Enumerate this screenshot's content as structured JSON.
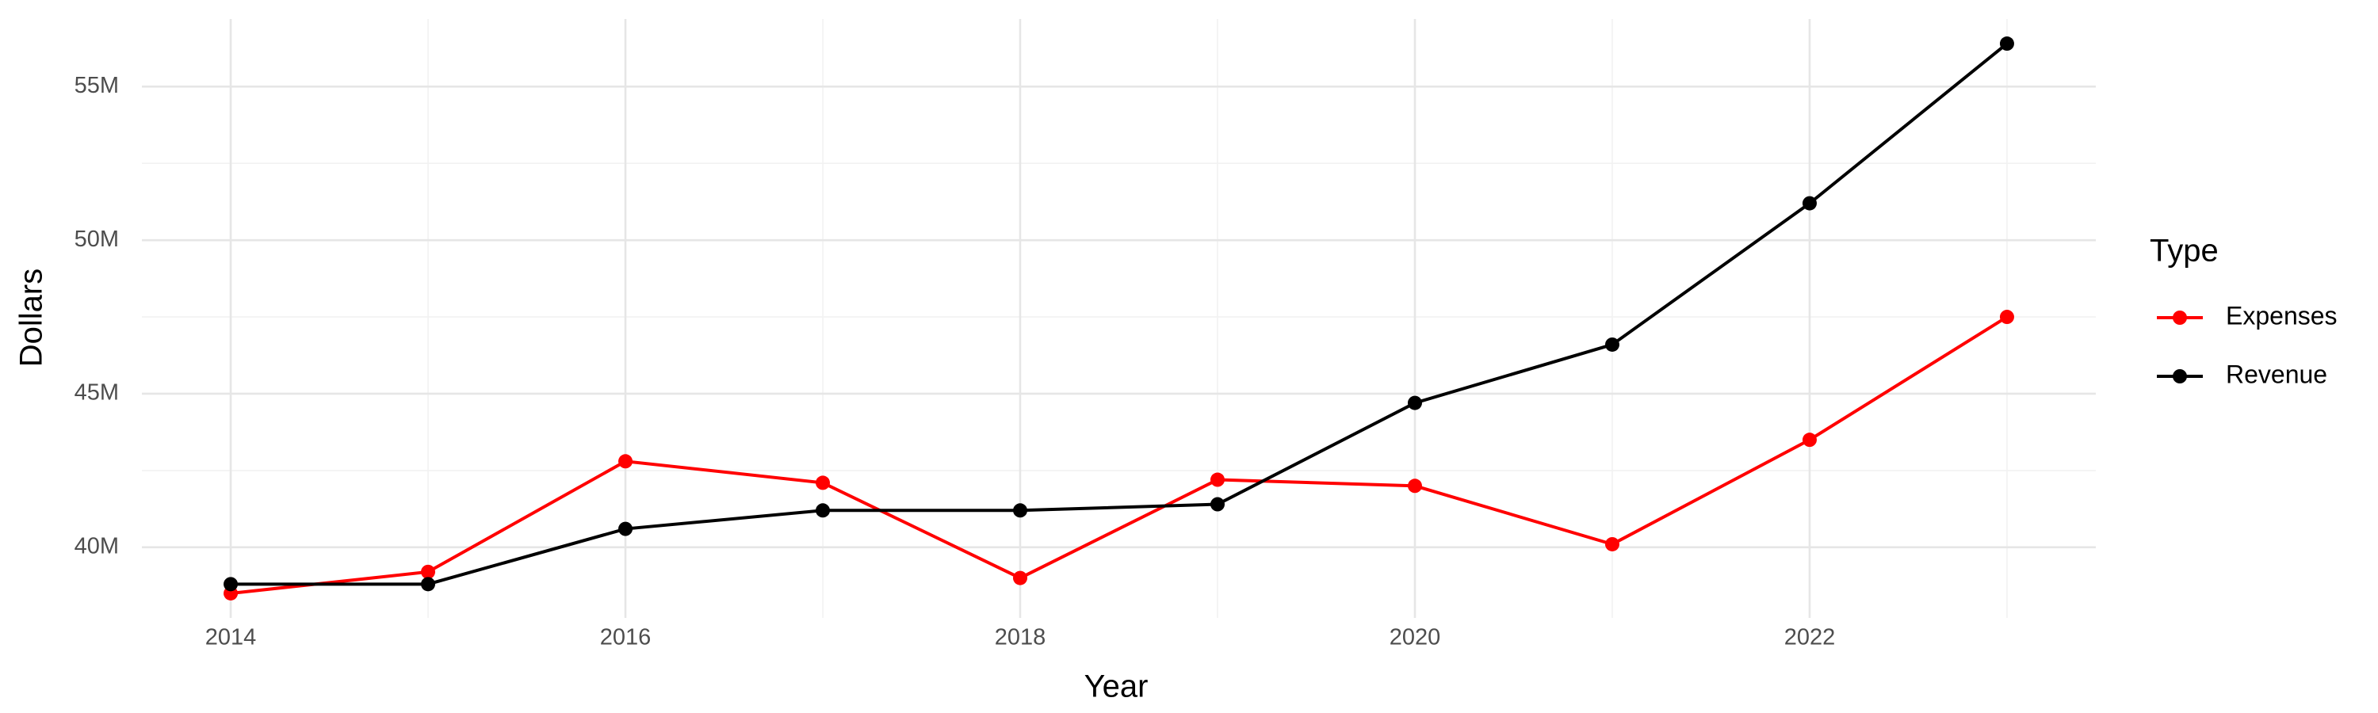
{
  "chart_data": {
    "type": "line",
    "x_label": "Year",
    "y_label": "Dollars",
    "legend_title": "Type",
    "legend_position": "right",
    "grid": true,
    "x": [
      2014,
      2015,
      2016,
      2017,
      2018,
      2019,
      2020,
      2021,
      2022,
      2023
    ],
    "series": [
      {
        "name": "Expenses",
        "color": "#ff0000",
        "values": [
          38500000,
          39200000,
          42800000,
          42100000,
          39000000,
          42200000,
          42000000,
          40100000,
          43500000,
          47500000
        ]
      },
      {
        "name": "Revenue",
        "color": "#000000",
        "values": [
          38800000,
          38800000,
          40600000,
          41200000,
          41200000,
          41400000,
          44700000,
          46600000,
          51200000,
          56400000
        ]
      }
    ],
    "xlim": [
      2013.55,
      2023.45
    ],
    "xticks": [
      2014,
      2016,
      2018,
      2020,
      2022
    ],
    "ylim": [
      37700000,
      57200000
    ],
    "yticks": [
      {
        "value": 40000000,
        "label": "40M"
      },
      {
        "value": 45000000,
        "label": "45M"
      },
      {
        "value": 50000000,
        "label": "50M"
      },
      {
        "value": 55000000,
        "label": "55M"
      }
    ]
  }
}
